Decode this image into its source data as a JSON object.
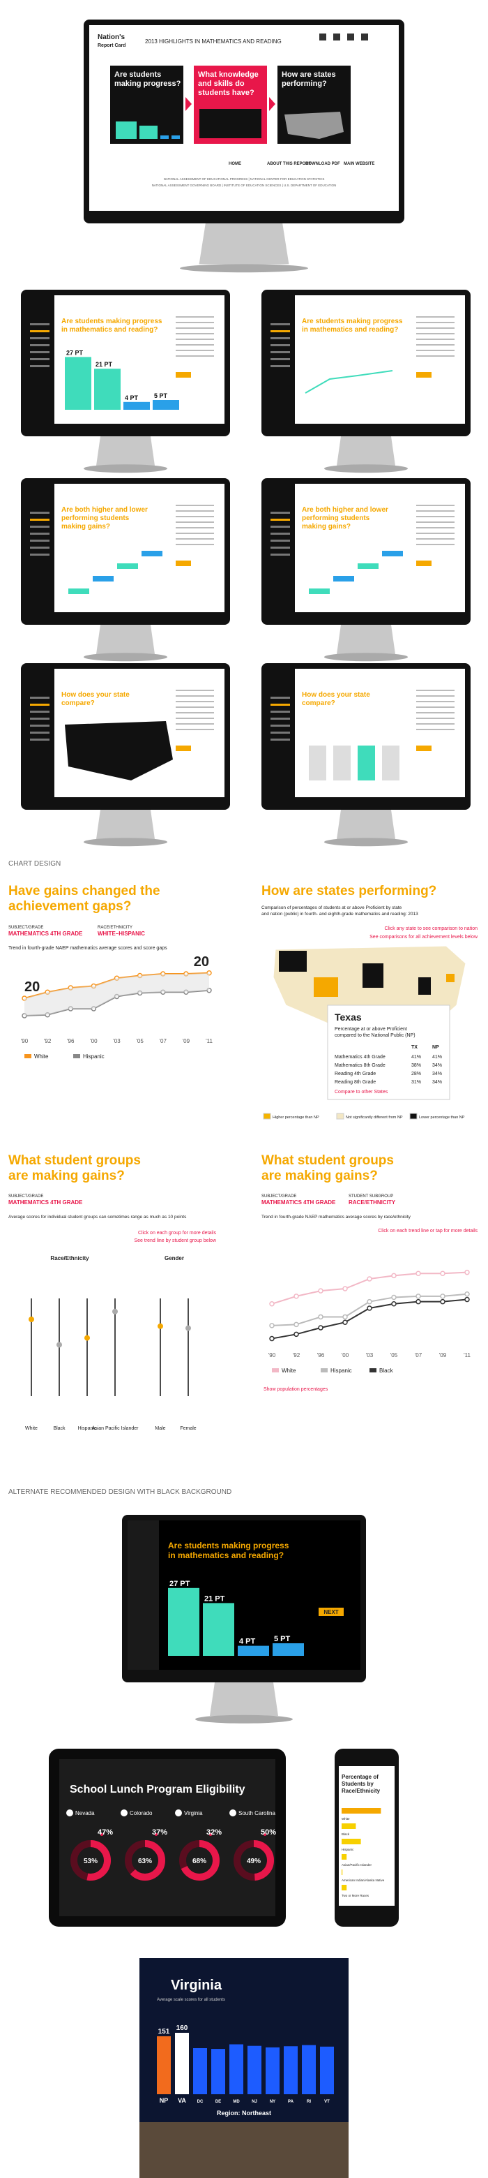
{
  "hero": {
    "logo": [
      "Nation's",
      "Report Card"
    ],
    "title": "2013 HIGHLIGHTS IN MATHEMATICS AND READING",
    "nav": [
      "HOME",
      "ABOUT THIS REPORT",
      "DOWNLOAD PDF",
      "MAIN WEBSITE"
    ],
    "panels": [
      {
        "lines": [
          "Are students",
          "making progress?"
        ]
      },
      {
        "lines": [
          "What knowledge",
          "and skills do",
          "students have?"
        ]
      },
      {
        "lines": [
          "How are states",
          "performing?"
        ]
      }
    ],
    "footer": [
      "NATIONAL ASSESSMENT OF EDUCATIONAL PROGRESS | NATIONAL CENTER FOR EDUCATION STATISTICS",
      "NATIONAL ASSESSMENT GOVERNING BOARD | INSTITUTE OF EDUCATION SCIENCES | U.S. DEPARTMENT OF EDUCATION"
    ]
  },
  "screens": [
    {
      "lines": [
        "Are students making progress",
        "in mathematics and reading?"
      ],
      "bars": {
        "values": [
          27,
          21,
          4,
          5
        ],
        "value_labels": [
          "27 PT",
          "21 PT",
          "4 PT",
          "5 PT"
        ]
      }
    },
    {
      "lines": [
        "Are students making progress",
        "in mathematics and reading?"
      ]
    },
    {
      "lines": [
        "Are both higher and lower",
        "performing students",
        "making gains?"
      ]
    },
    {
      "lines": [
        "Are both higher and lower",
        "performing students",
        "making gains?"
      ]
    },
    {
      "lines": [
        "How does your state",
        "compare?"
      ]
    },
    {
      "lines": [
        "How does your state",
        "compare?"
      ]
    }
  ],
  "section1": "CHART DESIGN",
  "gap_chart": {
    "lines": [
      "Have gains changed the",
      "achievement gaps?"
    ],
    "subject_label": "SUBJECT/GRADE",
    "subject": "MATHEMATICS 4TH GRADE",
    "group_label": "RACE/ETHNICITY",
    "group": "WHITE–HISPANIC",
    "caption": "Trend in fourth-grade NAEP mathematics average scores and score gaps",
    "x": [
      "'90",
      "'92",
      "'96",
      "'00",
      "'03",
      "'05",
      "'07",
      "'09",
      "'11"
    ],
    "ylim": [
      180,
      260
    ],
    "series": [
      {
        "name": "White",
        "color": "#f7941d",
        "values": [
          220,
          227,
          232,
          234,
          243,
          246,
          248,
          248,
          249
        ]
      },
      {
        "name": "Hispanic",
        "color": "#888888",
        "values": [
          200,
          201,
          208,
          208,
          222,
          226,
          227,
          227,
          229
        ]
      }
    ],
    "gaps": [
      20,
      20
    ]
  },
  "state_map": {
    "lines": [
      "How are states performing?"
    ],
    "caption": [
      "Comparison of percentages of students at or above Proficient by state",
      "and nation (public) in fourth- and eighth-grade mathematics and reading: 2013"
    ],
    "link1": "Click any state to see comparison to nation",
    "link2": "See comparisons for all achievement levels below",
    "state": "Texas",
    "desc": [
      "Percentage at or above Proficient",
      "compared to the National Public (NP)"
    ],
    "table": {
      "header": [
        "TX",
        "NP"
      ],
      "rows": [
        [
          "Mathematics 4th Grade",
          "41%",
          "41%"
        ],
        [
          "Mathematics 8th Grade",
          "38%",
          "34%"
        ],
        [
          "Reading 4th Grade",
          "28%",
          "34%"
        ],
        [
          "Reading 8th Grade",
          "31%",
          "34%"
        ]
      ]
    },
    "compare": "Compare to other States",
    "legend": [
      {
        "name": "Higher percentage than NP",
        "color": "#f5b400"
      },
      {
        "name": "Not significantly different from NP",
        "color": "#f3e7c4"
      },
      {
        "name": "Lower percentage than NP",
        "color": "#111111"
      }
    ]
  },
  "groups_left": {
    "lines": [
      "What student groups",
      "are making gains?"
    ],
    "subject_label": "SUBJECT/GRADE",
    "subject": "MATHEMATICS 4TH GRADE",
    "caption": "Average scores for individual student groups can sometimes range as much as 10 points",
    "link": [
      "Click on each group for more details",
      "See trend line by student group below"
    ],
    "headers": [
      "Race/Ethnicity",
      "Gender"
    ],
    "groups": [
      "White",
      "Black",
      "Hispanic",
      "Asian Pacific Islander",
      "Male",
      "Female"
    ],
    "ylim": [
      150,
      300
    ],
    "scores": [
      250,
      224,
      231,
      258,
      243,
      241
    ]
  },
  "groups_right": {
    "lines": [
      "What student groups",
      "are making gains?"
    ],
    "subject_label": "SUBJECT/GRADE",
    "subject": "MATHEMATICS 4TH GRADE",
    "group_label": "STUDENT SUBGROUP",
    "group": "RACE/ETHNICITY",
    "caption": "Trend in fourth-grade NAEP mathematics average scores by race/ethnicity",
    "link": "Click on each trend line or tap for more details",
    "x": [
      "'90",
      "'92",
      "'96",
      "'00",
      "'03",
      "'05",
      "'07",
      "'09",
      "'11"
    ],
    "ylim": [
      180,
      270
    ],
    "series": [
      {
        "name": "White",
        "color": "#f2b8c6",
        "values": [
          220,
          227,
          232,
          234,
          243,
          246,
          248,
          248,
          249
        ]
      },
      {
        "name": "Hispanic",
        "color": "#bbbbbb",
        "values": [
          200,
          201,
          208,
          208,
          222,
          226,
          227,
          227,
          229
        ]
      },
      {
        "name": "Black",
        "color": "#333333",
        "values": [
          188,
          192,
          198,
          203,
          216,
          220,
          222,
          222,
          224
        ]
      }
    ],
    "footer": "Show population percentages"
  },
  "section2": "ALTERNATE RECOMMENDED DESIGN WITH BLACK BACKGROUND",
  "dark_screen": {
    "lines": [
      "Are students making progress",
      "in mathematics and reading?"
    ],
    "bars": {
      "values": [
        27,
        21,
        4,
        5
      ],
      "value_labels": [
        "27 PT",
        "21 PT",
        "4 PT",
        "5 PT"
      ]
    },
    "next": "NEXT"
  },
  "tablet": {
    "title": "School Lunch Program Eligibility",
    "states": [
      {
        "name": "Nevada",
        "values": [
          47,
          53
        ],
        "value_labels": [
          "47%",
          "53%"
        ]
      },
      {
        "name": "Colorado",
        "values": [
          37,
          63
        ],
        "value_labels": [
          "37%",
          "63%"
        ]
      },
      {
        "name": "Virginia",
        "values": [
          32,
          68
        ],
        "value_labels": [
          "32%",
          "68%"
        ]
      },
      {
        "name": "South Carolina",
        "values": [
          50,
          49
        ],
        "value_labels": [
          "50%",
          "49%"
        ]
      }
    ]
  },
  "phone": {
    "lines": [
      "Percentage of",
      "Students by",
      "Race/Ethnicity"
    ],
    "categories": [
      "White",
      "Black",
      "Hispanic",
      "Asian/Pacific Islander",
      "American Indian/Alaska Native",
      "Two or More Races"
    ],
    "values": [
      47,
      17,
      23,
      6,
      1,
      6
    ]
  },
  "virginia": {
    "title": "Virginia",
    "subtitle": "Average scale scores for all students",
    "region": "Region: Northeast",
    "categories": [
      "NP",
      "VA",
      "DC",
      "DE",
      "MD",
      "NJ",
      "NY",
      "PA",
      "RI",
      "VT"
    ],
    "values": [
      151,
      160,
      120,
      118,
      130,
      126,
      122,
      125,
      128,
      124
    ],
    "value_labels": [
      "151",
      "160",
      null,
      null,
      null,
      null,
      null,
      null,
      null,
      null
    ]
  }
}
